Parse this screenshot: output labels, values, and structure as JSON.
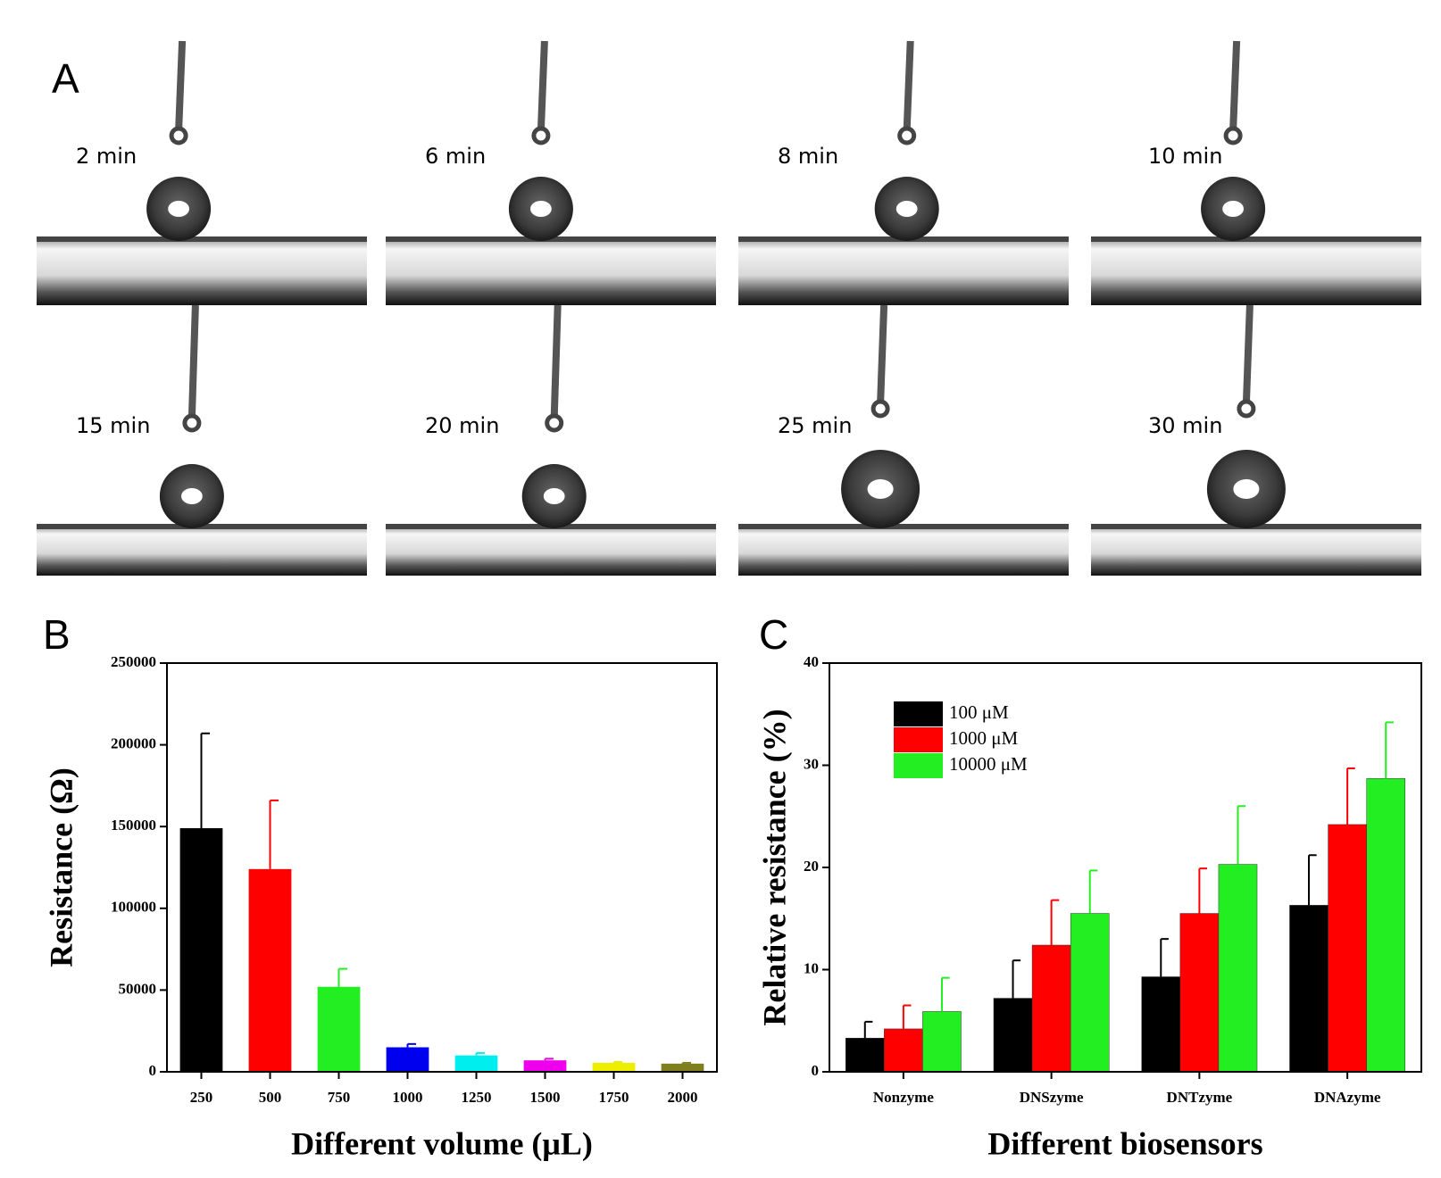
{
  "photos": {
    "panel": "A",
    "frames": [
      "2 min",
      "6 min",
      "8 min",
      "10 min",
      "15 min",
      "20 min",
      "25 min",
      "30 min"
    ]
  },
  "chart_data": [
    {
      "type": "bar",
      "panel": "B",
      "xlabel": "Different volume (μL)",
      "ylabel": "Resistance (Ω)",
      "categories": [
        "250",
        "500",
        "750",
        "1000",
        "1250",
        "1500",
        "1750",
        "2000"
      ],
      "values": [
        149000,
        124000,
        52000,
        15000,
        10000,
        7000,
        5500,
        5000
      ],
      "errors": [
        58000,
        42000,
        11000,
        2000,
        1500,
        1000,
        500,
        500
      ],
      "colors": [
        "#000000",
        "#ff0000",
        "#22ee22",
        "#0000ee",
        "#00eeee",
        "#ee00ee",
        "#eeee00",
        "#7f7f1f"
      ],
      "ylim": [
        0,
        250000
      ],
      "yticks": [
        0,
        50000,
        100000,
        150000,
        200000,
        250000
      ]
    },
    {
      "type": "bar",
      "panel": "C",
      "xlabel": "Different biosensors",
      "ylabel": "Relative resistance (%)",
      "categories": [
        "Nonzyme",
        "DNSzyme",
        "DNTzyme",
        "DNAzyme"
      ],
      "series": [
        {
          "name": "100 μM",
          "color": "#000000",
          "values": [
            3.3,
            7.2,
            9.3,
            16.3
          ],
          "errors": [
            1.6,
            3.7,
            3.7,
            4.9
          ]
        },
        {
          "name": "1000 μM",
          "color": "#ff0000",
          "values": [
            4.2,
            12.4,
            15.5,
            24.2
          ],
          "errors": [
            2.3,
            4.4,
            4.4,
            5.5
          ]
        },
        {
          "name": "10000 μM",
          "color": "#22ee22",
          "values": [
            5.9,
            15.5,
            20.3,
            28.7
          ],
          "errors": [
            3.3,
            4.2,
            5.7,
            5.5
          ]
        }
      ],
      "ylim": [
        0,
        40
      ],
      "yticks": [
        0,
        10,
        20,
        30,
        40
      ],
      "legend": "upper left"
    }
  ]
}
